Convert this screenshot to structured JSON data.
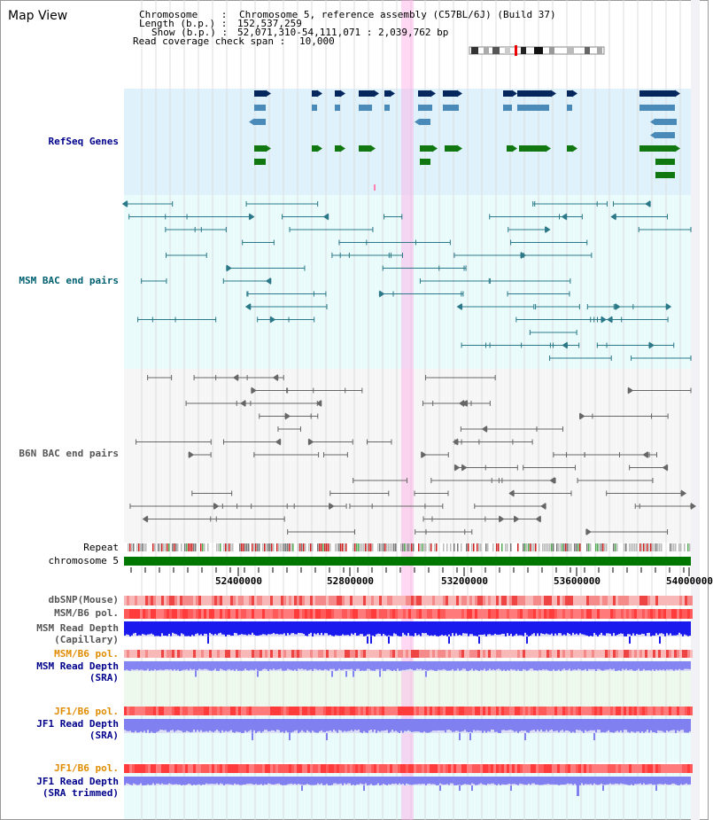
{
  "title": "Map View",
  "info": {
    "chromosome_label": "Chromosome    :",
    "chromosome_value": "Chromosome 5, reference assembly (C57BL/6J) (Build 37)",
    "length_label": "Length (b.p.) :",
    "length_value": "152,537,259",
    "show_label": "Show (b.p.) :",
    "show_value": "52,071,310-54,111,071 : 2,039,762 bp",
    "coverage_label": "Read coverage check span :",
    "coverage_value": "10,000"
  },
  "tracks": {
    "refseq": "RefSeq Genes",
    "msm_bac": "MSM BAC end pairs",
    "b6n_bac": "B6N BAC end pairs",
    "repeat": "Repeat",
    "chromosome": "chromosome 5",
    "dbsnp": "dbSNP(Mouse)",
    "msm_b6_pol": "MSM/B6 pol.",
    "msm_depth_cap_1": "MSM Read Depth",
    "msm_depth_cap_2": "(Capillary)",
    "msm_b6_pol_2": "MSM/B6 pol.",
    "msm_depth_sra_1": "MSM Read Depth",
    "msm_depth_sra_2": "(SRA)",
    "jf1_b6_pol": "JF1/B6 pol.",
    "jf1_depth_sra_1": "JF1 Read Depth",
    "jf1_depth_sra_2": "(SRA)",
    "jf1_b6_pol_2": "JF1/B6 pol.",
    "jf1_depth_trim_1": "JF1 Read Depth",
    "jf1_depth_trim_2": "(SRA trimmed)"
  },
  "axis": {
    "ticks": [
      "52400000",
      "52800000",
      "53200000",
      "53600000",
      "54000000"
    ]
  },
  "colors": {
    "refseq_label": "#00008b",
    "msm_label": "#006070",
    "b6n_label": "#555555",
    "orange_label": "#e08c00",
    "blue_label": "#00008b"
  }
}
